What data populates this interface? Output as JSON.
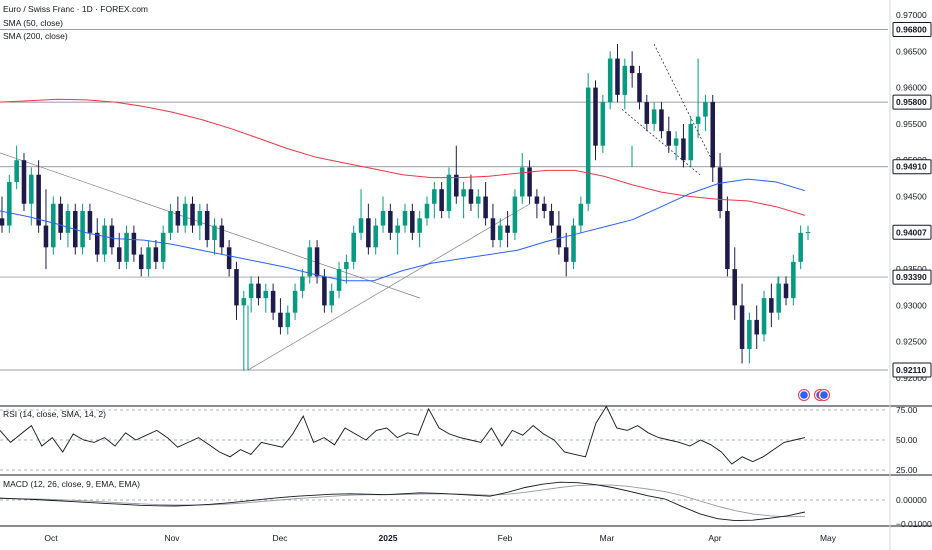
{
  "chart_data": {
    "type": "candlestick",
    "title": "Euro / Swiss Franc · 1D · FOREX.com",
    "legend": [
      "SMA (50, close)",
      "SMA (200, close)"
    ],
    "x_ticks": [
      "Oct",
      "Nov",
      "Dec",
      "2025",
      "Feb",
      "Mar",
      "Apr",
      "May"
    ],
    "y_ticks": [
      "0.97000",
      "0.96500",
      "0.96000",
      "0.95500",
      "0.95000",
      "0.94500",
      "0.94000",
      "0.93500",
      "0.93000",
      "0.92500",
      "0.92000"
    ],
    "ylim": [
      0.92,
      0.97
    ],
    "price_labels": [
      "0.96800",
      "0.95800",
      "0.94910",
      "0.94007",
      "0.93390",
      "0.92110"
    ],
    "current_price": 0.94007,
    "horizontal_levels": [
      0.968,
      0.958,
      0.9491,
      0.9339,
      0.9211
    ],
    "candles": [
      {
        "o": 0.942,
        "h": 0.945,
        "l": 0.94,
        "c": 0.941
      },
      {
        "o": 0.941,
        "h": 0.948,
        "l": 0.94,
        "c": 0.947
      },
      {
        "o": 0.947,
        "h": 0.952,
        "l": 0.946,
        "c": 0.95
      },
      {
        "o": 0.95,
        "h": 0.951,
        "l": 0.943,
        "c": 0.944
      },
      {
        "o": 0.944,
        "h": 0.949,
        "l": 0.941,
        "c": 0.948
      },
      {
        "o": 0.948,
        "h": 0.95,
        "l": 0.94,
        "c": 0.941
      },
      {
        "o": 0.941,
        "h": 0.946,
        "l": 0.935,
        "c": 0.938
      },
      {
        "o": 0.938,
        "h": 0.945,
        "l": 0.937,
        "c": 0.944
      },
      {
        "o": 0.944,
        "h": 0.945,
        "l": 0.939,
        "c": 0.94
      },
      {
        "o": 0.94,
        "h": 0.944,
        "l": 0.938,
        "c": 0.943
      },
      {
        "o": 0.943,
        "h": 0.944,
        "l": 0.937,
        "c": 0.938
      },
      {
        "o": 0.938,
        "h": 0.944,
        "l": 0.937,
        "c": 0.943
      },
      {
        "o": 0.943,
        "h": 0.944,
        "l": 0.939,
        "c": 0.94
      },
      {
        "o": 0.94,
        "h": 0.942,
        "l": 0.936,
        "c": 0.937
      },
      {
        "o": 0.937,
        "h": 0.942,
        "l": 0.936,
        "c": 0.941
      },
      {
        "o": 0.941,
        "h": 0.942,
        "l": 0.937,
        "c": 0.938
      },
      {
        "o": 0.938,
        "h": 0.94,
        "l": 0.935,
        "c": 0.936
      },
      {
        "o": 0.936,
        "h": 0.941,
        "l": 0.935,
        "c": 0.94
      },
      {
        "o": 0.94,
        "h": 0.941,
        "l": 0.936,
        "c": 0.937
      },
      {
        "o": 0.937,
        "h": 0.938,
        "l": 0.934,
        "c": 0.935
      },
      {
        "o": 0.935,
        "h": 0.939,
        "l": 0.934,
        "c": 0.938
      },
      {
        "o": 0.938,
        "h": 0.939,
        "l": 0.935,
        "c": 0.936
      },
      {
        "o": 0.936,
        "h": 0.941,
        "l": 0.935,
        "c": 0.94
      },
      {
        "o": 0.94,
        "h": 0.944,
        "l": 0.939,
        "c": 0.943
      },
      {
        "o": 0.943,
        "h": 0.945,
        "l": 0.94,
        "c": 0.941
      },
      {
        "o": 0.941,
        "h": 0.945,
        "l": 0.94,
        "c": 0.944
      },
      {
        "o": 0.944,
        "h": 0.945,
        "l": 0.94,
        "c": 0.941
      },
      {
        "o": 0.941,
        "h": 0.944,
        "l": 0.939,
        "c": 0.943
      },
      {
        "o": 0.943,
        "h": 0.944,
        "l": 0.938,
        "c": 0.939
      },
      {
        "o": 0.939,
        "h": 0.942,
        "l": 0.937,
        "c": 0.941
      },
      {
        "o": 0.941,
        "h": 0.942,
        "l": 0.937,
        "c": 0.938
      },
      {
        "o": 0.938,
        "h": 0.939,
        "l": 0.934,
        "c": 0.935
      },
      {
        "o": 0.935,
        "h": 0.936,
        "l": 0.928,
        "c": 0.93
      },
      {
        "o": 0.93,
        "h": 0.932,
        "l": 0.921,
        "c": 0.931
      },
      {
        "o": 0.931,
        "h": 0.934,
        "l": 0.929,
        "c": 0.933
      },
      {
        "o": 0.933,
        "h": 0.934,
        "l": 0.93,
        "c": 0.931
      },
      {
        "o": 0.931,
        "h": 0.933,
        "l": 0.929,
        "c": 0.932
      },
      {
        "o": 0.932,
        "h": 0.933,
        "l": 0.928,
        "c": 0.929
      },
      {
        "o": 0.929,
        "h": 0.931,
        "l": 0.926,
        "c": 0.927
      },
      {
        "o": 0.927,
        "h": 0.93,
        "l": 0.926,
        "c": 0.929
      },
      {
        "o": 0.929,
        "h": 0.933,
        "l": 0.928,
        "c": 0.932
      },
      {
        "o": 0.932,
        "h": 0.935,
        "l": 0.931,
        "c": 0.934
      },
      {
        "o": 0.934,
        "h": 0.939,
        "l": 0.933,
        "c": 0.938
      },
      {
        "o": 0.938,
        "h": 0.939,
        "l": 0.933,
        "c": 0.934
      },
      {
        "o": 0.934,
        "h": 0.935,
        "l": 0.929,
        "c": 0.93
      },
      {
        "o": 0.93,
        "h": 0.933,
        "l": 0.929,
        "c": 0.932
      },
      {
        "o": 0.932,
        "h": 0.936,
        "l": 0.931,
        "c": 0.935
      },
      {
        "o": 0.935,
        "h": 0.937,
        "l": 0.933,
        "c": 0.936
      },
      {
        "o": 0.936,
        "h": 0.941,
        "l": 0.935,
        "c": 0.94
      },
      {
        "o": 0.94,
        "h": 0.946,
        "l": 0.939,
        "c": 0.942
      },
      {
        "o": 0.942,
        "h": 0.944,
        "l": 0.937,
        "c": 0.938
      },
      {
        "o": 0.938,
        "h": 0.942,
        "l": 0.937,
        "c": 0.941
      },
      {
        "o": 0.941,
        "h": 0.945,
        "l": 0.94,
        "c": 0.943
      },
      {
        "o": 0.943,
        "h": 0.944,
        "l": 0.939,
        "c": 0.94
      },
      {
        "o": 0.94,
        "h": 0.942,
        "l": 0.937,
        "c": 0.941
      },
      {
        "o": 0.941,
        "h": 0.944,
        "l": 0.94,
        "c": 0.943
      },
      {
        "o": 0.943,
        "h": 0.944,
        "l": 0.939,
        "c": 0.94
      },
      {
        "o": 0.94,
        "h": 0.943,
        "l": 0.938,
        "c": 0.942
      },
      {
        "o": 0.942,
        "h": 0.945,
        "l": 0.941,
        "c": 0.944
      },
      {
        "o": 0.944,
        "h": 0.947,
        "l": 0.942,
        "c": 0.946
      },
      {
        "o": 0.946,
        "h": 0.947,
        "l": 0.942,
        "c": 0.943
      },
      {
        "o": 0.943,
        "h": 0.949,
        "l": 0.942,
        "c": 0.948
      },
      {
        "o": 0.948,
        "h": 0.952,
        "l": 0.944,
        "c": 0.945
      },
      {
        "o": 0.945,
        "h": 0.947,
        "l": 0.942,
        "c": 0.946
      },
      {
        "o": 0.946,
        "h": 0.948,
        "l": 0.943,
        "c": 0.944
      },
      {
        "o": 0.944,
        "h": 0.946,
        "l": 0.942,
        "c": 0.945
      },
      {
        "o": 0.945,
        "h": 0.947,
        "l": 0.941,
        "c": 0.942
      },
      {
        "o": 0.942,
        "h": 0.944,
        "l": 0.938,
        "c": 0.939
      },
      {
        "o": 0.939,
        "h": 0.942,
        "l": 0.938,
        "c": 0.941
      },
      {
        "o": 0.941,
        "h": 0.943,
        "l": 0.938,
        "c": 0.94
      },
      {
        "o": 0.94,
        "h": 0.946,
        "l": 0.939,
        "c": 0.945
      },
      {
        "o": 0.945,
        "h": 0.951,
        "l": 0.944,
        "c": 0.949
      },
      {
        "o": 0.949,
        "h": 0.95,
        "l": 0.944,
        "c": 0.945
      },
      {
        "o": 0.945,
        "h": 0.946,
        "l": 0.942,
        "c": 0.944
      },
      {
        "o": 0.944,
        "h": 0.945,
        "l": 0.942,
        "c": 0.943
      },
      {
        "o": 0.943,
        "h": 0.944,
        "l": 0.94,
        "c": 0.941
      },
      {
        "o": 0.941,
        "h": 0.943,
        "l": 0.937,
        "c": 0.938
      },
      {
        "o": 0.938,
        "h": 0.94,
        "l": 0.934,
        "c": 0.936
      },
      {
        "o": 0.936,
        "h": 0.942,
        "l": 0.935,
        "c": 0.941
      },
      {
        "o": 0.941,
        "h": 0.945,
        "l": 0.94,
        "c": 0.944
      },
      {
        "o": 0.944,
        "h": 0.962,
        "l": 0.943,
        "c": 0.96
      },
      {
        "o": 0.96,
        "h": 0.961,
        "l": 0.95,
        "c": 0.952
      },
      {
        "o": 0.952,
        "h": 0.959,
        "l": 0.951,
        "c": 0.958
      },
      {
        "o": 0.958,
        "h": 0.965,
        "l": 0.957,
        "c": 0.964
      },
      {
        "o": 0.964,
        "h": 0.966,
        "l": 0.958,
        "c": 0.959
      },
      {
        "o": 0.959,
        "h": 0.964,
        "l": 0.957,
        "c": 0.963
      },
      {
        "o": 0.963,
        "h": 0.965,
        "l": 0.96,
        "c": 0.962
      },
      {
        "o": 0.962,
        "h": 0.963,
        "l": 0.957,
        "c": 0.958
      },
      {
        "o": 0.958,
        "h": 0.959,
        "l": 0.954,
        "c": 0.955
      },
      {
        "o": 0.955,
        "h": 0.958,
        "l": 0.954,
        "c": 0.957
      },
      {
        "o": 0.957,
        "h": 0.958,
        "l": 0.953,
        "c": 0.954
      },
      {
        "o": 0.954,
        "h": 0.956,
        "l": 0.951,
        "c": 0.952
      },
      {
        "o": 0.952,
        "h": 0.954,
        "l": 0.95,
        "c": 0.953
      },
      {
        "o": 0.953,
        "h": 0.955,
        "l": 0.949,
        "c": 0.95
      },
      {
        "o": 0.95,
        "h": 0.956,
        "l": 0.949,
        "c": 0.955
      },
      {
        "o": 0.955,
        "h": 0.964,
        "l": 0.953,
        "c": 0.956
      },
      {
        "o": 0.956,
        "h": 0.959,
        "l": 0.954,
        "c": 0.958
      },
      {
        "o": 0.958,
        "h": 0.959,
        "l": 0.947,
        "c": 0.949
      },
      {
        "o": 0.949,
        "h": 0.951,
        "l": 0.942,
        "c": 0.943
      },
      {
        "o": 0.943,
        "h": 0.945,
        "l": 0.934,
        "c": 0.935
      },
      {
        "o": 0.935,
        "h": 0.938,
        "l": 0.928,
        "c": 0.93
      },
      {
        "o": 0.93,
        "h": 0.933,
        "l": 0.922,
        "c": 0.924
      },
      {
        "o": 0.924,
        "h": 0.929,
        "l": 0.922,
        "c": 0.928
      },
      {
        "o": 0.928,
        "h": 0.93,
        "l": 0.924,
        "c": 0.926
      },
      {
        "o": 0.926,
        "h": 0.932,
        "l": 0.925,
        "c": 0.931
      },
      {
        "o": 0.931,
        "h": 0.933,
        "l": 0.927,
        "c": 0.929
      },
      {
        "o": 0.929,
        "h": 0.934,
        "l": 0.928,
        "c": 0.933
      },
      {
        "o": 0.933,
        "h": 0.934,
        "l": 0.93,
        "c": 0.931
      },
      {
        "o": 0.931,
        "h": 0.937,
        "l": 0.93,
        "c": 0.936
      },
      {
        "o": 0.936,
        "h": 0.941,
        "l": 0.935,
        "c": 0.94
      },
      {
        "o": 0.94,
        "h": 0.941,
        "l": 0.939,
        "c": 0.9401
      }
    ],
    "sma50": [
      0.943,
      0.9422,
      0.9412,
      0.94,
      0.9392,
      0.939,
      0.9384,
      0.9376,
      0.9368,
      0.936,
      0.9352,
      0.9342,
      0.9334,
      0.9334,
      0.9348,
      0.9358,
      0.9364,
      0.937,
      0.9376,
      0.9388,
      0.9398,
      0.9408,
      0.9418,
      0.9436,
      0.9454,
      0.9468,
      0.9474,
      0.947,
      0.9458
    ],
    "sma200": [
      0.958,
      0.9582,
      0.9584,
      0.9583,
      0.958,
      0.9574,
      0.9566,
      0.9556,
      0.9544,
      0.953,
      0.9516,
      0.9504,
      0.9496,
      0.9488,
      0.948,
      0.9476,
      0.9476,
      0.9478,
      0.9482,
      0.9486,
      0.9486,
      0.9478,
      0.9466,
      0.9456,
      0.945,
      0.9446,
      0.9444,
      0.9436,
      0.9424
    ],
    "rsi": {
      "label": "RSI (14, close, SMA, 14, 2)",
      "ylim": [
        25,
        75
      ],
      "ticks": [
        "75.00",
        "50.00",
        "25.00"
      ],
      "values": [
        58,
        48,
        55,
        62,
        45,
        52,
        40,
        55,
        50,
        48,
        52,
        45,
        56,
        50,
        54,
        58,
        52,
        44,
        48,
        52,
        46,
        40,
        36,
        42,
        38,
        48,
        46,
        44,
        55,
        70,
        48,
        52,
        46,
        60,
        55,
        50,
        58,
        60,
        52,
        56,
        54,
        76,
        60,
        55,
        52,
        50,
        48,
        60,
        45,
        58,
        54,
        62,
        55,
        50,
        40,
        38,
        36,
        64,
        78,
        60,
        58,
        62,
        56,
        52,
        50,
        48,
        45,
        50,
        46,
        40,
        30,
        36,
        32,
        36,
        42,
        48,
        50,
        52
      ]
    },
    "macd": {
      "label": "MACD (12, 26, close, 9, EMA, EMA)",
      "ticks": [
        "0.00000",
        "−0.01000"
      ],
      "macd": [
        0.0008,
        0.0005,
        0.0002,
        -0.0002,
        -0.0006,
        -0.001,
        -0.0014,
        -0.0018,
        -0.0022,
        -0.0024,
        -0.0025,
        -0.0022,
        -0.0018,
        -0.0012,
        -0.0005,
        0.0003,
        0.001,
        0.0016,
        0.002,
        0.0024,
        0.0026,
        0.0024,
        0.0022,
        0.0026,
        0.003,
        0.0028,
        0.0024,
        0.002,
        0.0016,
        0.0032,
        0.0052,
        0.0066,
        0.0074,
        0.0072,
        0.0064,
        0.0052,
        0.0036,
        0.0018,
        0.0004,
        -0.0028,
        -0.0058,
        -0.0078,
        -0.0086,
        -0.0084,
        -0.0076,
        -0.0066,
        -0.005
      ],
      "signal": [
        0.0006,
        0.0005,
        0.0004,
        0.0002,
        -0.0001,
        -0.0004,
        -0.0008,
        -0.0012,
        -0.0016,
        -0.0019,
        -0.0021,
        -0.0021,
        -0.002,
        -0.0017,
        -0.0012,
        -0.0006,
        0.0,
        0.0006,
        0.0011,
        0.0016,
        0.002,
        0.0022,
        0.0022,
        0.0023,
        0.0025,
        0.0026,
        0.0025,
        0.0023,
        0.002,
        0.0024,
        0.0032,
        0.0042,
        0.0052,
        0.006,
        0.0063,
        0.0062,
        0.0056,
        0.0046,
        0.0035,
        0.0018,
        -0.0004,
        -0.0026,
        -0.0044,
        -0.0058,
        -0.0066,
        -0.007,
        -0.0068
      ]
    },
    "colors": {
      "up": "#089981",
      "down": "#1e1b4b",
      "sma50": "#2962ff",
      "sma200": "#f23645",
      "rsi": "#131722",
      "grid": "#9598a1",
      "price_label_border": "#131722"
    }
  }
}
